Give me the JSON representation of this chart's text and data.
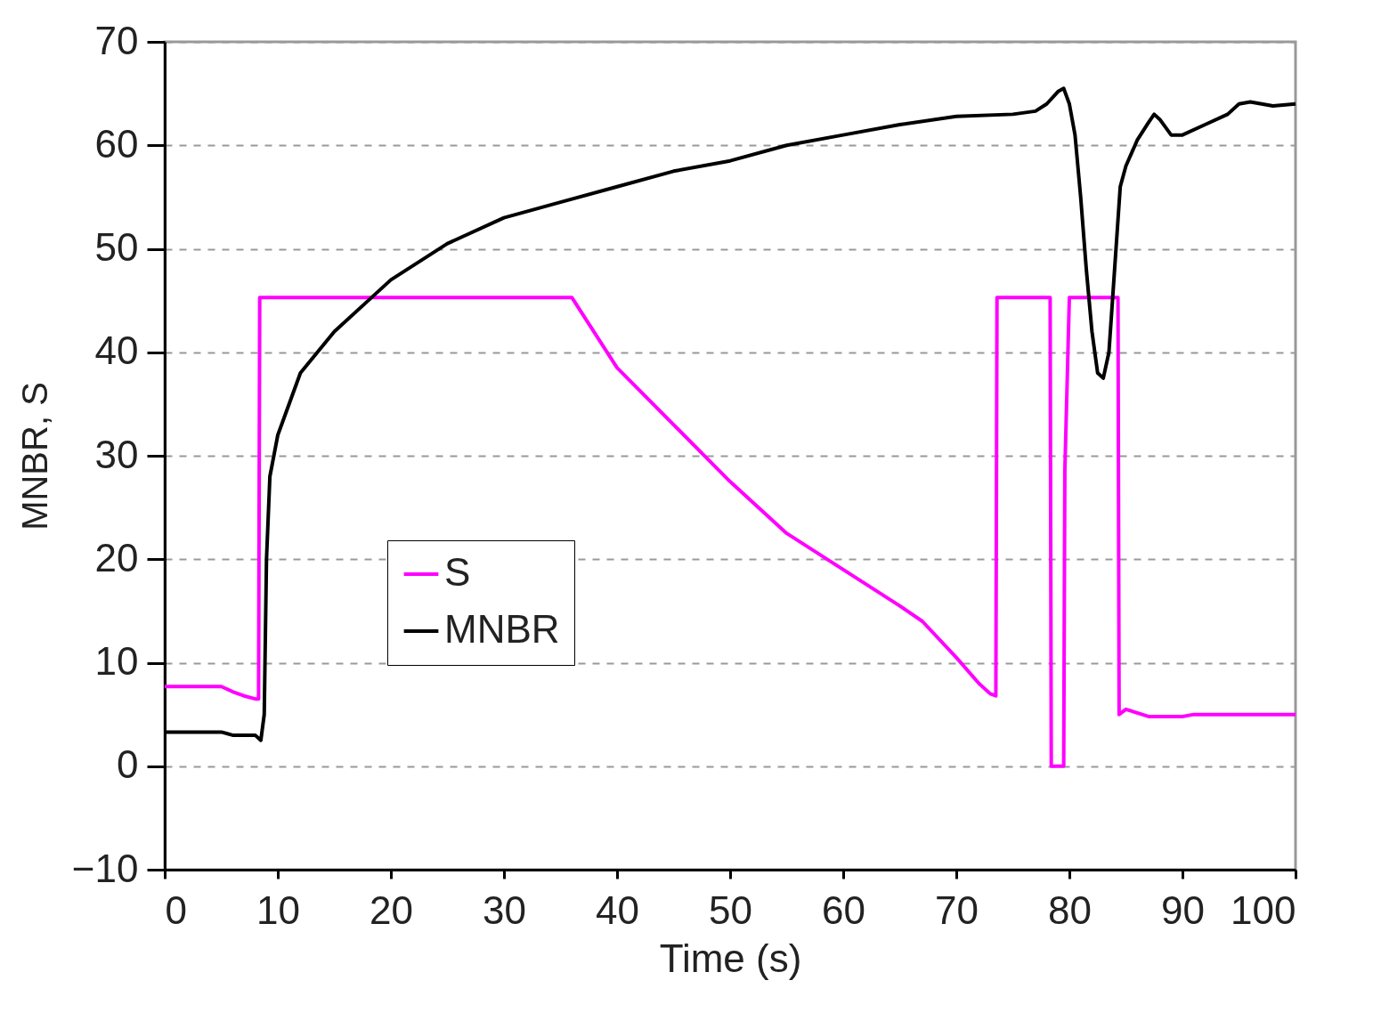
{
  "chart_data": {
    "type": "line",
    "xlabel": "Time (s)",
    "ylabel": "MNBR, S",
    "xlim": [
      0,
      100
    ],
    "ylim": [
      -10,
      70
    ],
    "xticks": [
      0,
      10,
      20,
      30,
      40,
      50,
      60,
      70,
      80,
      90,
      100
    ],
    "yticks": [
      -10,
      0,
      10,
      20,
      30,
      40,
      50,
      60,
      70
    ],
    "grid": "y",
    "legend": "left",
    "line_style": "solid",
    "marker": "none",
    "series": [
      {
        "name": "S",
        "color": "#ff00ff",
        "x": [
          0,
          5,
          6,
          7,
          8,
          8.3,
          8.4,
          9,
          20,
          36,
          40,
          45,
          50,
          55,
          60,
          65,
          67,
          70,
          72,
          73,
          73.5,
          73.6,
          78.3,
          78.4,
          79.5,
          79.6,
          80,
          84.3,
          84.4,
          85,
          87,
          90,
          91,
          100
        ],
        "values": [
          7.7,
          7.7,
          7.2,
          6.8,
          6.5,
          6.5,
          45.3,
          45.3,
          45.3,
          45.3,
          38.5,
          33,
          27.5,
          22.5,
          19,
          15.5,
          14,
          10.5,
          8,
          7,
          6.8,
          45.3,
          45.3,
          0,
          0,
          28.5,
          45.3,
          45.3,
          5,
          5.5,
          4.8,
          4.8,
          5,
          5
        ]
      },
      {
        "name": "MNBR",
        "color": "#000000",
        "x": [
          0,
          5,
          6,
          8,
          8.5,
          8.8,
          9,
          9.3,
          10,
          12,
          15,
          18,
          20,
          25,
          30,
          35,
          40,
          45,
          50,
          55,
          60,
          65,
          70,
          75,
          77,
          78,
          79,
          79.5,
          80,
          80.5,
          81,
          81.5,
          82,
          82.5,
          83,
          83.5,
          84,
          84.5,
          85,
          86,
          87,
          87.5,
          88,
          89,
          90,
          92,
          94,
          95,
          96,
          98,
          100
        ],
        "values": [
          3.3,
          3.3,
          3,
          3,
          2.5,
          5,
          20,
          28,
          32,
          38,
          42,
          45,
          47,
          50.5,
          53,
          54.5,
          56,
          57.5,
          58.5,
          60,
          61,
          62,
          62.8,
          63,
          63.3,
          64,
          65.2,
          65.5,
          64,
          61,
          55,
          48,
          42,
          38,
          37.5,
          40,
          48,
          56,
          58,
          60.5,
          62.2,
          63,
          62.5,
          61,
          61,
          62,
          63,
          64,
          64.2,
          63.8,
          64
        ]
      }
    ]
  }
}
